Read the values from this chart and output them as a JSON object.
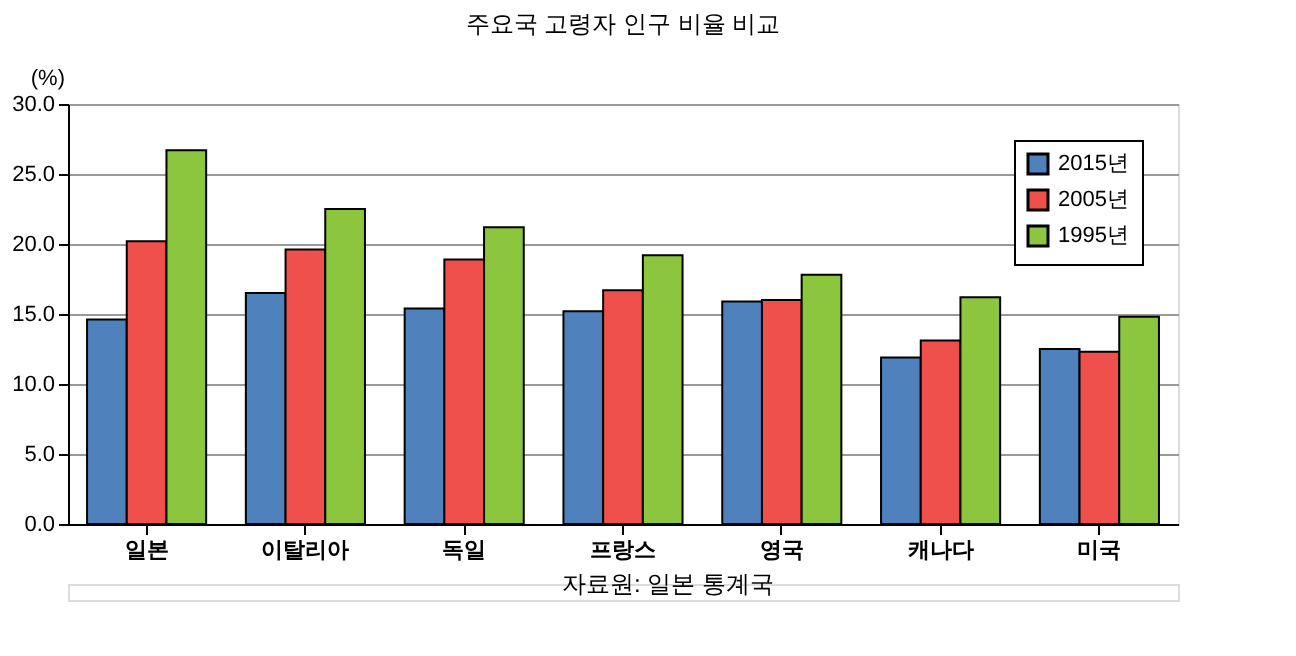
{
  "chart_data": {
    "type": "bar",
    "title": "주요국 고령자 인구 비율 비교",
    "ylabel": "(%)",
    "categories": [
      "일본",
      "이탈리아",
      "독일",
      "프랑스",
      "영국",
      "캐나다",
      "미국"
    ],
    "series": [
      {
        "name": "2015년",
        "color": "#4f81bd",
        "values": [
          14.6,
          16.5,
          15.4,
          15.2,
          15.9,
          11.9,
          12.5
        ]
      },
      {
        "name": "2005년",
        "color": "#f0504c",
        "values": [
          20.2,
          19.6,
          18.9,
          16.7,
          16.0,
          13.1,
          12.3
        ]
      },
      {
        "name": "1995년",
        "color": "#8cc63f",
        "values": [
          26.7,
          22.5,
          21.2,
          19.2,
          17.8,
          16.2,
          14.8
        ]
      }
    ],
    "ylim": [
      0,
      30
    ],
    "yticks": [
      {
        "value": 0,
        "label": "0.0"
      },
      {
        "value": 5,
        "label": "5.0"
      },
      {
        "value": 10,
        "label": "10.0"
      },
      {
        "value": 15,
        "label": "15.0"
      },
      {
        "value": 20,
        "label": "20.0"
      },
      {
        "value": 25,
        "label": "25.0"
      },
      {
        "value": 30,
        "label": "30.0"
      }
    ],
    "grid": "y",
    "legend": "top right",
    "annotations": [
      "자료원: 일본 통계국"
    ]
  }
}
